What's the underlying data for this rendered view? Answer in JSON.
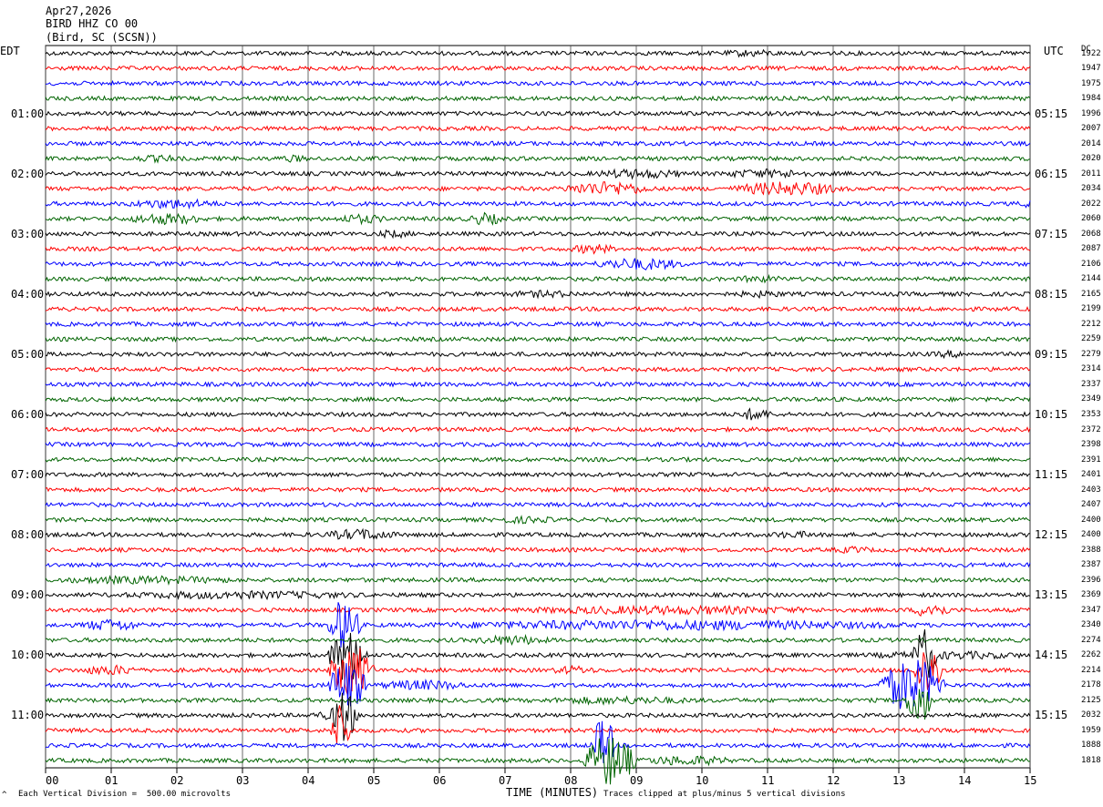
{
  "header": {
    "date": "Apr27,2026",
    "station": "BIRD HHZ CO 00",
    "location": "(Bird, SC (SCSN))"
  },
  "left_axis_title": "EDT",
  "right_axis_title": "UTC",
  "dc_title": "DC",
  "footer": {
    "vertical_division": "Each Vertical Division =  500.00 microvolts",
    "clip_note": "Traces clipped at plus/minus 5 vertical divisions",
    "corner_mark": "^"
  },
  "chart_data": {
    "type": "line",
    "title": "BIRD HHZ CO 00",
    "xlabel": "TIME (MINUTES)",
    "ylabel": "",
    "xlim": [
      0,
      15
    ],
    "x_ticks": [
      "00",
      "01",
      "02",
      "03",
      "04",
      "05",
      "06",
      "07",
      "08",
      "09",
      "10",
      "11",
      "12",
      "13",
      "14",
      "15"
    ],
    "trace_colors": [
      "#000000",
      "#ff0000",
      "#0000ff",
      "#006400"
    ],
    "edt_labels": [
      "01:00",
      "02:00",
      "03:00",
      "04:00",
      "05:00",
      "06:00",
      "07:00",
      "08:00",
      "09:00",
      "10:00",
      "11:00"
    ],
    "utc_labels": [
      "05:15",
      "06:15",
      "07:15",
      "08:15",
      "09:15",
      "10:15",
      "11:15",
      "12:15",
      "13:15",
      "14:15",
      "15:15"
    ],
    "dc_values": [
      1922,
      1947,
      1975,
      1984,
      1996,
      2007,
      2014,
      2020,
      2011,
      2034,
      2022,
      2060,
      2068,
      2087,
      2106,
      2144,
      2165,
      2199,
      2212,
      2259,
      2279,
      2314,
      2337,
      2349,
      2353,
      2372,
      2398,
      2391,
      2401,
      2403,
      2407,
      2400,
      2400,
      2388,
      2387,
      2396,
      2369,
      2347,
      2340,
      2274,
      2262,
      2214,
      2178,
      2125,
      2032,
      1959,
      1888,
      1818
    ],
    "bursts": [
      {
        "row": 0,
        "t": 10.3,
        "dur": 0.9,
        "amp": 1.8
      },
      {
        "row": 7,
        "t": 1.3,
        "dur": 0.8,
        "amp": 1.8
      },
      {
        "row": 7,
        "t": 3.5,
        "dur": 0.5,
        "amp": 1.8
      },
      {
        "row": 8,
        "t": 8.3,
        "dur": 1.5,
        "amp": 2.4
      },
      {
        "row": 8,
        "t": 10.2,
        "dur": 1.6,
        "amp": 2.2
      },
      {
        "row": 9,
        "t": 7.8,
        "dur": 1.5,
        "amp": 3.5
      },
      {
        "row": 9,
        "t": 10.4,
        "dur": 1.8,
        "amp": 3.5
      },
      {
        "row": 10,
        "t": 1.2,
        "dur": 1.5,
        "amp": 2.4
      },
      {
        "row": 10,
        "t": 14.8,
        "dur": 0.3,
        "amp": 2.0
      },
      {
        "row": 11,
        "t": 1.2,
        "dur": 1.3,
        "amp": 2.8
      },
      {
        "row": 11,
        "t": 4.4,
        "dur": 0.8,
        "amp": 2.4
      },
      {
        "row": 11,
        "t": 6.4,
        "dur": 0.6,
        "amp": 3.0
      },
      {
        "row": 12,
        "t": 5.0,
        "dur": 0.6,
        "amp": 2.0
      },
      {
        "row": 13,
        "t": 8.0,
        "dur": 0.7,
        "amp": 2.5
      },
      {
        "row": 14,
        "t": 8.3,
        "dur": 1.5,
        "amp": 3.0
      },
      {
        "row": 15,
        "t": 10.5,
        "dur": 0.8,
        "amp": 1.8
      },
      {
        "row": 16,
        "t": 7.0,
        "dur": 1.2,
        "amp": 1.8
      },
      {
        "row": 16,
        "t": 10.5,
        "dur": 0.8,
        "amp": 1.8
      },
      {
        "row": 20,
        "t": 13.5,
        "dur": 0.6,
        "amp": 1.8
      },
      {
        "row": 24,
        "t": 10.5,
        "dur": 0.6,
        "amp": 3.0
      },
      {
        "row": 31,
        "t": 6.8,
        "dur": 1.0,
        "amp": 1.8
      },
      {
        "row": 32,
        "t": 4.2,
        "dur": 1.2,
        "amp": 2.8
      },
      {
        "row": 32,
        "t": 11.0,
        "dur": 0.8,
        "amp": 1.8
      },
      {
        "row": 33,
        "t": 12.0,
        "dur": 0.6,
        "amp": 1.8
      },
      {
        "row": 35,
        "t": 0.0,
        "dur": 3.0,
        "amp": 2.0
      },
      {
        "row": 36,
        "t": 1.0,
        "dur": 4.0,
        "amp": 2.0
      },
      {
        "row": 37,
        "t": 7.0,
        "dur": 5.0,
        "amp": 2.2
      },
      {
        "row": 37,
        "t": 13.2,
        "dur": 0.6,
        "amp": 4.0
      },
      {
        "row": 38,
        "t": 0.5,
        "dur": 1.0,
        "amp": 3.0
      },
      {
        "row": 38,
        "t": 5.5,
        "dur": 8.0,
        "amp": 2.5
      },
      {
        "row": 39,
        "t": 6.5,
        "dur": 1.2,
        "amp": 2.5
      },
      {
        "row": 40,
        "t": 12.5,
        "dur": 2.5,
        "amp": 2.0
      },
      {
        "row": 41,
        "t": 0.5,
        "dur": 1.0,
        "amp": 2.5
      },
      {
        "row": 41,
        "t": 7.7,
        "dur": 0.7,
        "amp": 2.2
      },
      {
        "row": 42,
        "t": 5.0,
        "dur": 1.5,
        "amp": 2.5
      },
      {
        "row": 43,
        "t": 7.5,
        "dur": 2.5,
        "amp": 2.0
      },
      {
        "row": 44,
        "t": 4.0,
        "dur": 0.8,
        "amp": 2.2
      },
      {
        "row": 47,
        "t": 9.0,
        "dur": 1.5,
        "amp": 2.5
      }
    ],
    "clipped_events": [
      {
        "row": 38,
        "t": 4.3,
        "dur": 0.5
      },
      {
        "row": 40,
        "t": 4.3,
        "dur": 0.6
      },
      {
        "row": 41,
        "t": 4.3,
        "dur": 0.7
      },
      {
        "row": 42,
        "t": 4.3,
        "dur": 0.6
      },
      {
        "row": 44,
        "t": 4.35,
        "dur": 0.4
      },
      {
        "row": 45,
        "t": 4.35,
        "dur": 0.3
      },
      {
        "row": 40,
        "t": 13.2,
        "dur": 0.4
      },
      {
        "row": 41,
        "t": 13.2,
        "dur": 0.5
      },
      {
        "row": 42,
        "t": 12.7,
        "dur": 1.0
      },
      {
        "row": 43,
        "t": 13.1,
        "dur": 0.4
      },
      {
        "row": 46,
        "t": 8.3,
        "dur": 0.4
      },
      {
        "row": 47,
        "t": 8.2,
        "dur": 0.8
      }
    ]
  }
}
